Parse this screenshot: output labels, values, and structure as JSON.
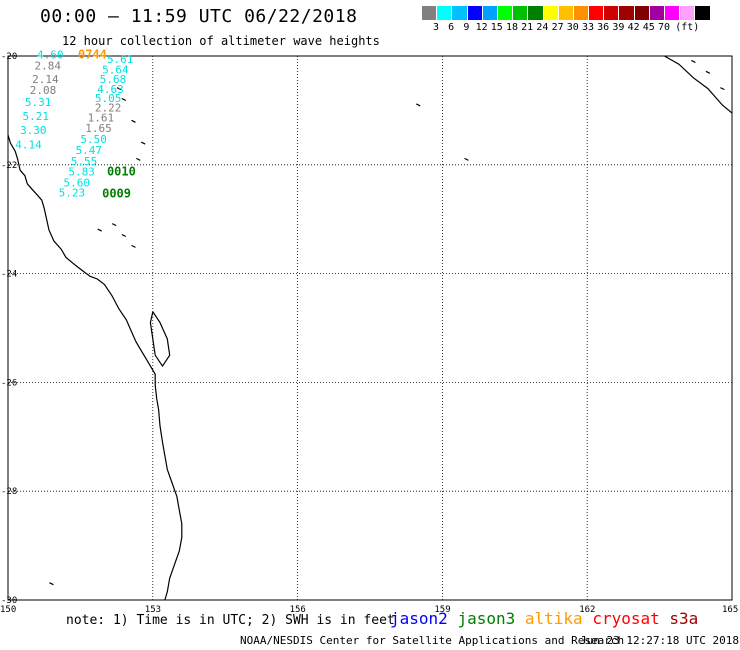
{
  "header": {
    "title": "00:00 – 11:59 UTC 06/22/2018",
    "subtitle": "12 hour collection of altimeter wave heights"
  },
  "legend": {
    "colors": [
      "#808080",
      "#00ffff",
      "#00c0ff",
      "#0000ff",
      "#00a0ff",
      "#00ff00",
      "#00c000",
      "#008000",
      "#ffff00",
      "#ffc000",
      "#ff9000",
      "#ff0000",
      "#d00000",
      "#a00000",
      "#800000",
      "#a000a0",
      "#ff00ff",
      "#ffa0ff",
      "#000000"
    ],
    "labels": [
      "3",
      "6",
      "9",
      "12",
      "15",
      "18",
      "21",
      "24",
      "27",
      "30",
      "33",
      "36",
      "39",
      "42",
      "45",
      "70",
      "(ft)"
    ]
  },
  "map": {
    "lat_labels": [
      "-20",
      "-22",
      "-24",
      "-26",
      "-28",
      "-30"
    ],
    "lon_labels": [
      "150",
      "153",
      "156",
      "159",
      "162",
      "165"
    ],
    "wave_labels": [
      {
        "text": "4.60",
        "lon": 150.6,
        "lat": -20.05,
        "color": "#00e0e0"
      },
      {
        "text": "0744",
        "lon": 151.45,
        "lat": -20.05,
        "color": "#ff9900"
      },
      {
        "text": "2.84",
        "lon": 150.55,
        "lat": -20.25,
        "color": "#808080"
      },
      {
        "text": "5.61",
        "lon": 152.05,
        "lat": -20.13,
        "color": "#00e0e0"
      },
      {
        "text": "5.64",
        "lon": 151.95,
        "lat": -20.32,
        "color": "#00e0e0"
      },
      {
        "text": "2.14",
        "lon": 150.5,
        "lat": -20.5,
        "color": "#808080"
      },
      {
        "text": "5.68",
        "lon": 151.9,
        "lat": -20.5,
        "color": "#00e0e0"
      },
      {
        "text": "2.08",
        "lon": 150.45,
        "lat": -20.7,
        "color": "#808080"
      },
      {
        "text": "4.63",
        "lon": 151.85,
        "lat": -20.68,
        "color": "#00e0e0"
      },
      {
        "text": "5.31",
        "lon": 150.35,
        "lat": -20.92,
        "color": "#00e0e0"
      },
      {
        "text": "5.05",
        "lon": 151.8,
        "lat": -20.85,
        "color": "#00e0e0"
      },
      {
        "text": "2.22",
        "lon": 151.8,
        "lat": -21.02,
        "color": "#808080"
      },
      {
        "text": "5.21",
        "lon": 150.3,
        "lat": -21.18,
        "color": "#00e0e0"
      },
      {
        "text": "1.61",
        "lon": 151.65,
        "lat": -21.2,
        "color": "#808080"
      },
      {
        "text": "1.65",
        "lon": 151.6,
        "lat": -21.4,
        "color": "#808080"
      },
      {
        "text": "3.30",
        "lon": 150.25,
        "lat": -21.43,
        "color": "#00e0e0"
      },
      {
        "text": "5.50",
        "lon": 151.5,
        "lat": -21.6,
        "color": "#00e0e0"
      },
      {
        "text": "4.14",
        "lon": 150.15,
        "lat": -21.7,
        "color": "#00e0e0"
      },
      {
        "text": "5.47",
        "lon": 151.4,
        "lat": -21.8,
        "color": "#00e0e0"
      },
      {
        "text": "5.55",
        "lon": 151.3,
        "lat": -22.0,
        "color": "#00e0e0"
      },
      {
        "text": "5.83",
        "lon": 151.25,
        "lat": -22.2,
        "color": "#00e0e0"
      },
      {
        "text": "0010",
        "lon": 152.05,
        "lat": -22.2,
        "color": "#008000"
      },
      {
        "text": "5.60",
        "lon": 151.15,
        "lat": -22.4,
        "color": "#00e0e0"
      },
      {
        "text": "5.23",
        "lon": 151.05,
        "lat": -22.58,
        "color": "#00e0e0"
      },
      {
        "text": "0009",
        "lon": 151.95,
        "lat": -22.6,
        "color": "#008000"
      }
    ]
  },
  "footer": {
    "note": "note: 1) Time is in UTC; 2) SWH is in feet",
    "satellites": [
      {
        "name": "jason2",
        "color": "#0000ff"
      },
      {
        "name": "jason3",
        "color": "#008000"
      },
      {
        "name": "altika",
        "color": "#ff9900"
      },
      {
        "name": "cryosat",
        "color": "#ff0000"
      },
      {
        "name": "s3a",
        "color": "#a00000"
      }
    ],
    "credit": "NOAA/NESDIS Center for Satellite Applications and Research",
    "timestamp": "Jun 23 12:27:18 UTC 2018"
  }
}
